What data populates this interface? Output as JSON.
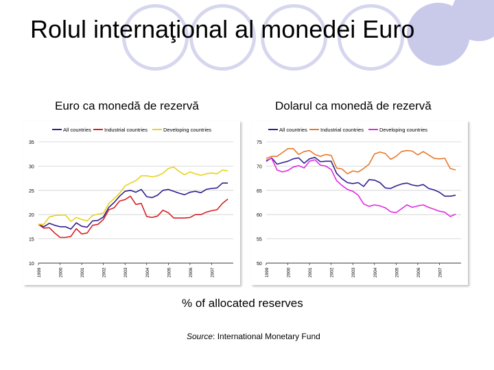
{
  "title": "Rolul internaţional al monedei Euro",
  "units_note": "% of allocated reserves",
  "source": {
    "prefix": "Source",
    "text": ": International Monetary Fund"
  },
  "colors": {
    "all": "#2e1f8f",
    "industrial": "#d61f1f",
    "developing": "#e8d21a",
    "industrial_usd": "#e8772a",
    "developing_usd": "#e02ae0",
    "grid": "#cfcfcf"
  },
  "chart_data": [
    {
      "type": "line",
      "caption": "Euro ca monedă de rezervă",
      "xlabels": [
        "1999",
        "2000",
        "2001",
        "2002",
        "2003",
        "2004",
        "2005",
        "2006",
        "2007"
      ],
      "xlim": [
        1999,
        2008
      ],
      "ylim": [
        10,
        35
      ],
      "yticks": [
        10,
        15,
        20,
        25,
        30,
        35
      ],
      "grid": true,
      "legend_position": "top",
      "series": [
        {
          "name": "All countries",
          "color": "#2e1f8f",
          "x": [
            1999,
            1999.25,
            1999.5,
            1999.75,
            2000,
            2000.25,
            2000.5,
            2000.75,
            2001,
            2001.25,
            2001.5,
            2001.75,
            2002,
            2002.25,
            2002.5,
            2002.75,
            2003,
            2003.25,
            2003.5,
            2003.75,
            2004,
            2004.25,
            2004.5,
            2004.75,
            2005,
            2005.25,
            2005.5,
            2005.75,
            2006,
            2006.25,
            2006.5,
            2006.75,
            2007,
            2007.25,
            2007.5,
            2007.75
          ],
          "y": [
            18,
            17.5,
            18.2,
            17.8,
            17.5,
            17.5,
            17,
            18.3,
            17.6,
            17.4,
            18.7,
            18.8,
            19.5,
            21.5,
            22.5,
            23.8,
            24.8,
            25,
            24.6,
            25.2,
            23.7,
            23.5,
            24,
            25,
            25.2,
            24.8,
            24.4,
            24.1,
            24.6,
            24.8,
            24.5,
            25.2,
            25.4,
            25.5,
            26.5,
            26.5
          ]
        },
        {
          "name": "Industrial countries",
          "color": "#d61f1f",
          "x": [
            1999,
            1999.25,
            1999.5,
            1999.75,
            2000,
            2000.25,
            2000.5,
            2000.75,
            2001,
            2001.25,
            2001.5,
            2001.75,
            2002,
            2002.25,
            2002.5,
            2002.75,
            2003,
            2003.25,
            2003.5,
            2003.75,
            2004,
            2004.25,
            2004.5,
            2004.75,
            2005,
            2005.25,
            2005.5,
            2005.75,
            2006,
            2006.25,
            2006.5,
            2006.75,
            2007,
            2007.25,
            2007.5,
            2007.75
          ],
          "y": [
            18,
            17.2,
            17.3,
            16.2,
            15.3,
            15.3,
            15.5,
            17.1,
            16,
            16.2,
            17.8,
            18,
            19,
            21,
            21.4,
            22.8,
            23.1,
            23.8,
            22.1,
            22.3,
            19.6,
            19.4,
            19.7,
            20.9,
            20.4,
            19.3,
            19.3,
            19.3,
            19.4,
            20,
            20,
            20.5,
            20.8,
            21,
            22.3,
            23.2
          ]
        },
        {
          "name": "Developing countries",
          "color": "#e8d21a",
          "x": [
            1999,
            1999.25,
            1999.5,
            1999.75,
            2000,
            2000.25,
            2000.5,
            2000.75,
            2001,
            2001.25,
            2001.5,
            2001.75,
            2002,
            2002.25,
            2002.5,
            2002.75,
            2003,
            2003.25,
            2003.5,
            2003.75,
            2004,
            2004.25,
            2004.5,
            2004.75,
            2005,
            2005.25,
            2005.5,
            2005.75,
            2006,
            2006.25,
            2006.5,
            2006.75,
            2007,
            2007.25,
            2007.5,
            2007.75
          ],
          "y": [
            18,
            18,
            19.5,
            19.8,
            19.9,
            19.9,
            18.6,
            19.4,
            19,
            18.7,
            19.8,
            20.1,
            20.3,
            22.3,
            23.3,
            24.4,
            25.9,
            26.5,
            27,
            28,
            28,
            27.8,
            28,
            28.5,
            29.5,
            29.8,
            28.9,
            28.2,
            28.8,
            28.4,
            28.1,
            28.4,
            28.6,
            28.4,
            29.2,
            29
          ]
        }
      ]
    },
    {
      "type": "line",
      "caption": "Dolarul ca monedă de rezervă",
      "xlabels": [
        "1999",
        "2000",
        "2001",
        "2002",
        "2003",
        "2004",
        "2005",
        "2006",
        "2007"
      ],
      "xlim": [
        1999,
        2008
      ],
      "ylim": [
        50,
        75
      ],
      "yticks": [
        50,
        55,
        60,
        65,
        70,
        75
      ],
      "grid": true,
      "legend_position": "top",
      "series": [
        {
          "name": "All countries",
          "color": "#2e1f8f",
          "x": [
            1999,
            1999.25,
            1999.5,
            1999.75,
            2000,
            2000.25,
            2000.5,
            2000.75,
            2001,
            2001.25,
            2001.5,
            2001.75,
            2002,
            2002.25,
            2002.5,
            2002.75,
            2003,
            2003.25,
            2003.5,
            2003.75,
            2004,
            2004.25,
            2004.5,
            2004.75,
            2005,
            2005.25,
            2005.5,
            2005.75,
            2006,
            2006.25,
            2006.5,
            2006.75,
            2007,
            2007.25,
            2007.5,
            2007.75
          ],
          "y": [
            71,
            71.7,
            70.4,
            70.7,
            71,
            71.5,
            71.7,
            70.6,
            71.5,
            71.8,
            70.9,
            71,
            71,
            68.5,
            67.4,
            66.6,
            66.4,
            66.6,
            65.8,
            67.2,
            67.1,
            66.6,
            65.5,
            65.4,
            65.9,
            66.3,
            66.5,
            66.1,
            65.9,
            66.2,
            65.4,
            65.1,
            64.6,
            63.8,
            63.8,
            64
          ]
        },
        {
          "name": "Industrial countries",
          "color": "#e8772a",
          "x": [
            1999,
            1999.25,
            1999.5,
            1999.75,
            2000,
            2000.25,
            2000.5,
            2000.75,
            2001,
            2001.25,
            2001.5,
            2001.75,
            2002,
            2002.25,
            2002.5,
            2002.75,
            2003,
            2003.25,
            2003.5,
            2003.75,
            2004,
            2004.25,
            2004.5,
            2004.75,
            2005,
            2005.25,
            2005.5,
            2005.75,
            2006,
            2006.25,
            2006.5,
            2006.75,
            2007,
            2007.25,
            2007.5,
            2007.75
          ],
          "y": [
            71.6,
            72,
            72,
            72.8,
            73.6,
            73.6,
            72.4,
            73,
            73.2,
            72.4,
            72,
            72.4,
            72.2,
            69.6,
            69.4,
            68.4,
            69,
            68.8,
            69.5,
            70.4,
            72.5,
            72.9,
            72.6,
            71.4,
            72,
            73,
            73.2,
            73.1,
            72.3,
            73,
            72.3,
            71.6,
            71.5,
            71.6,
            69.5,
            69.2
          ]
        },
        {
          "name": "Developing countries",
          "color": "#e02ae0",
          "x": [
            1999,
            1999.25,
            1999.5,
            1999.75,
            2000,
            2000.25,
            2000.5,
            2000.75,
            2001,
            2001.25,
            2001.5,
            2001.75,
            2002,
            2002.25,
            2002.5,
            2002.75,
            2003,
            2003.25,
            2003.5,
            2003.75,
            2004,
            2004.25,
            2004.5,
            2004.75,
            2005,
            2005.25,
            2005.5,
            2005.75,
            2006,
            2006.25,
            2006.5,
            2006.75,
            2007,
            2007.25,
            2007.5,
            2007.75
          ],
          "y": [
            71.2,
            71.6,
            69.2,
            68.8,
            69.1,
            69.8,
            70.1,
            69.6,
            71,
            71.3,
            70.2,
            70,
            69.3,
            67,
            66,
            65.2,
            64.8,
            64,
            62.2,
            61.7,
            62,
            61.8,
            61.4,
            60.6,
            60.4,
            61.2,
            62,
            61.5,
            61.8,
            62,
            61.5,
            61.1,
            60.7,
            60.5,
            59.6,
            60.1
          ]
        }
      ]
    }
  ]
}
